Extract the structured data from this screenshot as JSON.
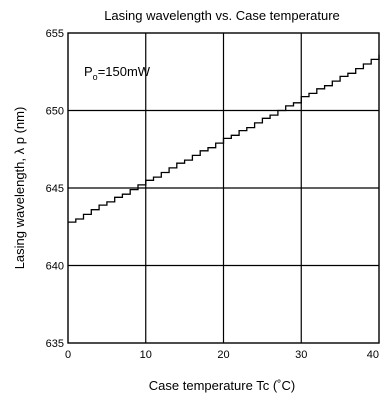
{
  "chart_data": {
    "type": "line",
    "title": "Lasing wavelength vs. Case temperature",
    "xlabel": "Case temperature Tc (˚C)",
    "ylabel": "Lasing wavelength, λ p (nm)",
    "xlim": [
      0,
      40
    ],
    "ylim": [
      635,
      655
    ],
    "x_ticks": [
      "0",
      "10",
      "20",
      "30",
      "40"
    ],
    "y_ticks": [
      "635",
      "640",
      "645",
      "650",
      "655"
    ],
    "grid": true,
    "annotation": {
      "main": "P",
      "sub": "o",
      "rest": "=150mW"
    },
    "series": [
      {
        "style": "staircase",
        "x": [
          0,
          1,
          2,
          3,
          4,
          5,
          6,
          7,
          8,
          9,
          10,
          11,
          12,
          13,
          14,
          15,
          16,
          17,
          18,
          19,
          20,
          21,
          22,
          23,
          24,
          25,
          26,
          27,
          28,
          29,
          30,
          31,
          32,
          33,
          34,
          35,
          36,
          37,
          38,
          39,
          40
        ],
        "y": [
          642.8,
          643.0,
          643.3,
          643.6,
          643.9,
          644.1,
          644.4,
          644.6,
          644.9,
          645.2,
          645.5,
          645.7,
          646.0,
          646.3,
          646.6,
          646.8,
          647.1,
          647.4,
          647.6,
          647.9,
          648.2,
          648.4,
          648.7,
          648.9,
          649.2,
          649.5,
          649.7,
          650.0,
          650.3,
          650.5,
          650.9,
          651.1,
          651.4,
          651.6,
          651.9,
          652.2,
          652.4,
          652.7,
          653.0,
          653.3,
          653.6
        ]
      }
    ]
  }
}
